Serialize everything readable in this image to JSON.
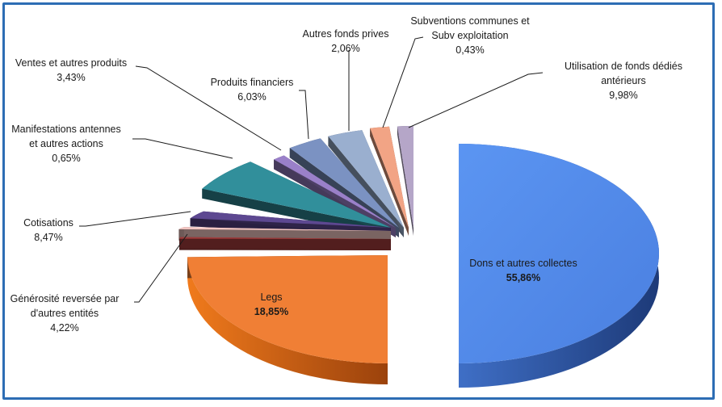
{
  "chart_data": {
    "type": "pie",
    "title": "",
    "slices": [
      {
        "label_lines": [
          "Dons et autres collectes"
        ],
        "value_text": "55,86%",
        "value": 55.86,
        "color": "#4f86e6"
      },
      {
        "label_lines": [
          "Legs"
        ],
        "value_text": "18,85%",
        "value": 18.85,
        "color": "#f07f35"
      },
      {
        "label_lines": [
          "Générosité reversée par",
          "d'autres entités"
        ],
        "value_text": "4,22%",
        "value": 4.22,
        "color": "#a33c3c"
      },
      {
        "label_lines": [
          "Cotisations"
        ],
        "value_text": "8,47%",
        "value": 8.47,
        "color": "#f4c7c3"
      },
      {
        "label_lines": [
          "Manifestations antennes",
          "et autres actions"
        ],
        "value_text": "0,65%",
        "value": 0.65,
        "color": "#5d4891"
      },
      {
        "label_lines": [
          "Ventes et autres produits"
        ],
        "value_text": "3,43%",
        "value": 3.43,
        "color": "#318f9b"
      },
      {
        "label_lines": [
          "Produits financiers"
        ],
        "value_text": "6,03%",
        "value": 6.03,
        "color": "#9a80c9"
      },
      {
        "label_lines": [
          "Autres fonds prives"
        ],
        "value_text": "2,06%",
        "value": 2.06,
        "color": "#7b92c2"
      },
      {
        "label_lines": [
          "Subventions communes et",
          "Subv exploitation"
        ],
        "value_text": "0,43%",
        "value": 0.43,
        "color": "#9aafcf"
      },
      {
        "label_lines": [
          "Utilisation de fonds dédiés",
          "antérieurs"
        ],
        "value_text": "9,98%",
        "value": 9.98,
        "color": "#f2a485"
      },
      {
        "label_lines": [],
        "value_text": "",
        "value": 0,
        "color": "#b5a6c8"
      }
    ],
    "legend": "none",
    "grid": false
  }
}
